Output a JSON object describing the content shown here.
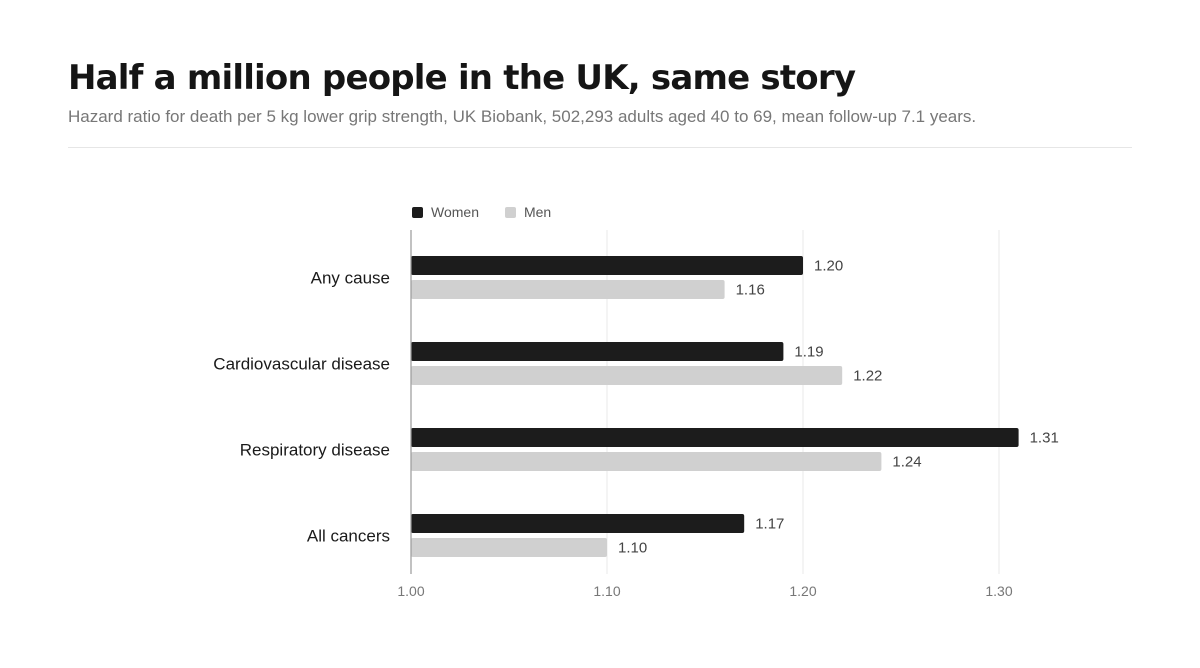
{
  "header": {
    "title": "Half a million people in the UK, same story",
    "subtitle": "Hazard ratio for death per 5 kg lower grip strength, UK Biobank, 502,293 adults aged 40 to 69, mean follow-up 7.1 years."
  },
  "colors": {
    "women": "#1c1c1c",
    "men": "#d0d0d0",
    "grid": "#e8e8e8",
    "axis": "#9a9a9a"
  },
  "chart_data": {
    "type": "bar",
    "orientation": "horizontal",
    "categories": [
      "Any cause",
      "Cardiovascular disease",
      "Respiratory disease",
      "All cancers"
    ],
    "series": [
      {
        "name": "Women",
        "values": [
          1.2,
          1.19,
          1.31,
          1.17
        ],
        "labels": [
          "1.20",
          "1.19",
          "1.31",
          "1.17"
        ]
      },
      {
        "name": "Men",
        "values": [
          1.16,
          1.22,
          1.24,
          1.1
        ],
        "labels": [
          "1.16",
          "1.22",
          "1.24",
          "1.10"
        ]
      }
    ],
    "xlim": [
      1.0,
      1.3
    ],
    "xticks": [
      1.0,
      1.1,
      1.2,
      1.3
    ],
    "xtick_labels": [
      "1.00",
      "1.10",
      "1.20",
      "1.30"
    ],
    "grid": "vertical",
    "legend_position": "top-left"
  }
}
